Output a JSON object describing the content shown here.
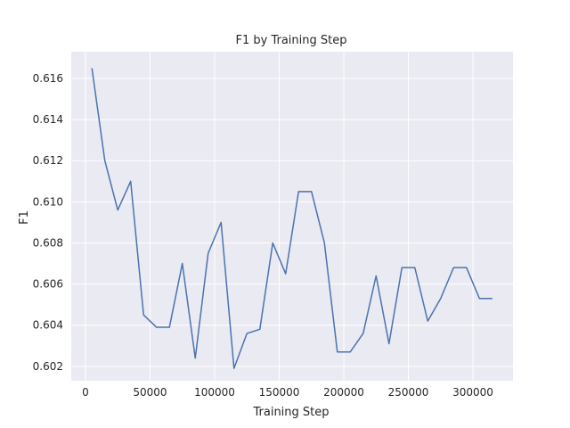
{
  "chart_data": {
    "type": "line",
    "title": "F1 by Training Step",
    "xlabel": "Training Step",
    "ylabel": "F1",
    "xlim": [
      -11000,
      331000
    ],
    "ylim": [
      0.6013,
      0.6173
    ],
    "x_ticks": [
      0,
      50000,
      100000,
      150000,
      200000,
      250000,
      300000
    ],
    "y_ticks": [
      0.602,
      0.604,
      0.606,
      0.608,
      0.61,
      0.612,
      0.614,
      0.616
    ],
    "grid": true,
    "colors": {
      "background": "#eaeaf2",
      "grid": "#ffffff",
      "line": "#4c72b0"
    },
    "series": [
      {
        "x": [
          5000,
          15000,
          25000,
          35000,
          45000,
          55000,
          65000,
          75000,
          85000,
          95000,
          105000,
          115000,
          125000,
          135000,
          145000,
          155000,
          165000,
          175000,
          185000,
          195000,
          205000,
          215000,
          225000,
          235000,
          245000,
          255000,
          265000,
          275000,
          285000,
          295000,
          305000,
          315000
        ],
        "values": [
          0.6165,
          0.612,
          0.6096,
          0.611,
          0.6045,
          0.6039,
          0.6039,
          0.607,
          0.6024,
          0.6075,
          0.609,
          0.6019,
          0.6036,
          0.6038,
          0.608,
          0.6065,
          0.6105,
          0.6105,
          0.608,
          0.6027,
          0.6027,
          0.6036,
          0.6064,
          0.6031,
          0.6068,
          0.6068,
          0.6042,
          0.6053,
          0.6068,
          0.6068,
          0.6053,
          0.6053
        ]
      }
    ]
  }
}
